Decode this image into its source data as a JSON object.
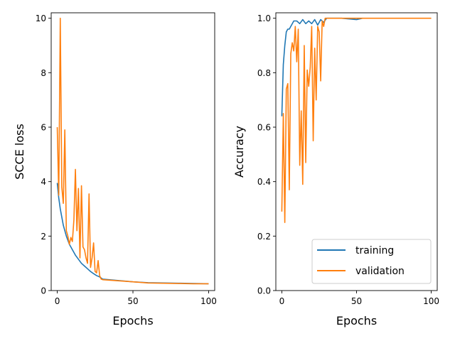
{
  "chart_data": [
    {
      "type": "line",
      "ylabel": "SCCE loss",
      "xlabel": "Epochs",
      "xlim": [
        -4,
        104
      ],
      "ylim": [
        0,
        10.2
      ],
      "xticks": [
        0,
        50,
        100
      ],
      "yticks": [
        0,
        2,
        4,
        6,
        8,
        10
      ],
      "grid": false,
      "series": [
        {
          "name": "training",
          "color": "#1f77b4",
          "x": [
            0,
            1,
            2,
            3,
            4,
            5,
            6,
            7,
            8,
            9,
            10,
            12,
            14,
            16,
            18,
            20,
            22,
            24,
            26,
            28,
            30,
            40,
            50,
            60,
            70,
            80,
            90,
            100
          ],
          "y": [
            3.95,
            3.4,
            3.0,
            2.7,
            2.4,
            2.2,
            2.0,
            1.85,
            1.7,
            1.6,
            1.5,
            1.3,
            1.15,
            1.0,
            0.9,
            0.8,
            0.7,
            0.62,
            0.55,
            0.5,
            0.42,
            0.37,
            0.32,
            0.29,
            0.28,
            0.27,
            0.26,
            0.25
          ]
        },
        {
          "name": "validation",
          "color": "#ff7f0e",
          "x": [
            0,
            1,
            2,
            3,
            4,
            5,
            6,
            7,
            8,
            9,
            10,
            11,
            12,
            13,
            14,
            15,
            16,
            17,
            18,
            19,
            20,
            21,
            22,
            23,
            24,
            25,
            26,
            27,
            28,
            29,
            30,
            40,
            50,
            60,
            70,
            80,
            90,
            100
          ],
          "y": [
            6.0,
            3.5,
            10.0,
            3.8,
            3.2,
            5.9,
            2.2,
            2.0,
            1.7,
            1.95,
            1.8,
            2.6,
            4.45,
            2.2,
            3.75,
            1.2,
            3.85,
            1.6,
            1.5,
            1.2,
            1.0,
            3.55,
            0.85,
            1.2,
            1.75,
            0.7,
            0.65,
            1.1,
            0.55,
            0.42,
            0.4,
            0.36,
            0.32,
            0.28,
            0.27,
            0.26,
            0.25,
            0.25
          ]
        }
      ]
    },
    {
      "type": "line",
      "ylabel": "Accuracy",
      "xlabel": "Epochs",
      "xlim": [
        -4,
        104
      ],
      "ylim": [
        0,
        1.02
      ],
      "xticks": [
        0,
        50,
        100
      ],
      "yticks": [
        0.0,
        0.2,
        0.4,
        0.6,
        0.8,
        1.0
      ],
      "grid": false,
      "legend": "lower-right",
      "series": [
        {
          "name": "training",
          "color": "#1f77b4",
          "x": [
            0,
            1,
            2,
            3,
            4,
            5,
            6,
            7,
            8,
            9,
            10,
            12,
            14,
            16,
            18,
            20,
            22,
            24,
            26,
            28,
            30,
            40,
            50,
            54
          ],
          "y": [
            0.64,
            0.83,
            0.9,
            0.95,
            0.96,
            0.96,
            0.97,
            0.98,
            0.99,
            0.99,
            0.99,
            0.98,
            0.995,
            0.98,
            0.99,
            0.98,
            0.995,
            0.975,
            0.995,
            0.985,
            1.0,
            1.0,
            0.995,
            1.0
          ]
        },
        {
          "name": "validation",
          "color": "#ff7f0e",
          "x": [
            0,
            1,
            2,
            3,
            4,
            5,
            6,
            7,
            8,
            9,
            10,
            11,
            12,
            13,
            14,
            15,
            16,
            17,
            18,
            19,
            20,
            21,
            22,
            23,
            24,
            25,
            26,
            27,
            28,
            29,
            30,
            31,
            40,
            50,
            60,
            70,
            80,
            90,
            100
          ],
          "y": [
            0.29,
            0.65,
            0.25,
            0.74,
            0.76,
            0.37,
            0.87,
            0.91,
            0.88,
            0.97,
            0.84,
            0.96,
            0.46,
            0.66,
            0.39,
            0.9,
            0.47,
            0.81,
            0.75,
            0.82,
            0.97,
            0.55,
            0.89,
            0.7,
            0.97,
            0.95,
            0.77,
            0.99,
            0.97,
            1.0,
            1.0,
            1.0,
            1.0,
            1.0,
            1.0,
            1.0,
            1.0,
            1.0,
            1.0
          ]
        }
      ]
    }
  ]
}
